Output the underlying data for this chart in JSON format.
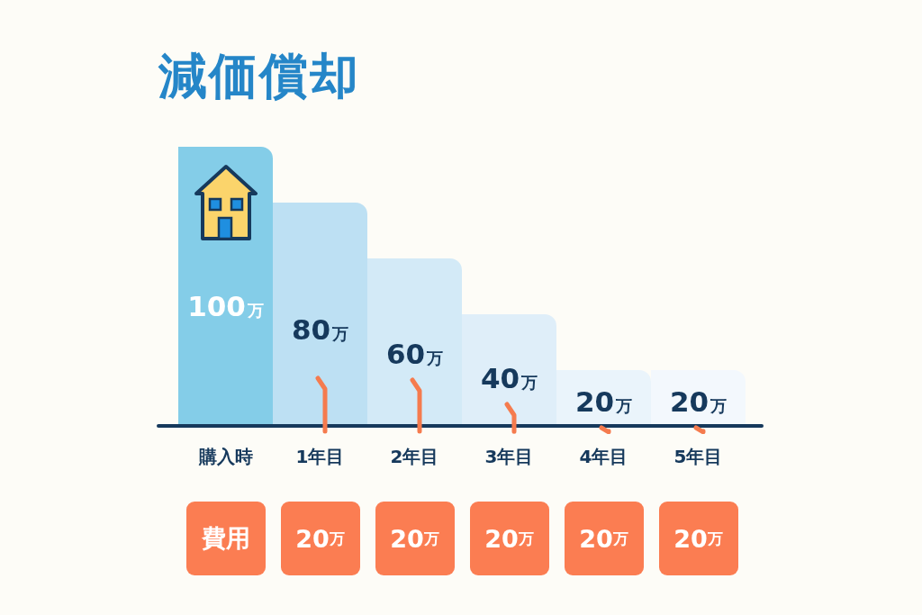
{
  "chart_data": {
    "type": "bar",
    "title": "減価償却",
    "categories": [
      "購入時",
      "1年目",
      "2年目",
      "3年目",
      "4年目",
      "5年目"
    ],
    "values": [
      100,
      80,
      60,
      40,
      20,
      20
    ],
    "colors": [
      "#84cde8",
      "#bde0f3",
      "#d3eaf7",
      "#dfeef9",
      "#eaf4fb",
      "#f3f8fd"
    ],
    "value_labels": [
      "100万",
      "80万",
      "60万",
      "40万",
      "20万",
      "20万"
    ],
    "ylim": [
      0,
      100
    ],
    "tick_labels": "x",
    "annotations": [
      "費用",
      "20万",
      "20万",
      "20万",
      "20万",
      "20万"
    ]
  }
}
